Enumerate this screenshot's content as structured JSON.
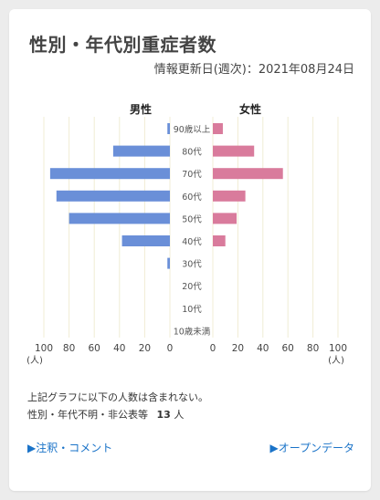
{
  "header": {
    "title": "性別・年代別重症者数",
    "updated": "情報更新日(週次)：2021年08月24日"
  },
  "chart_data": {
    "type": "bar",
    "orientation": "horizontal",
    "categories": [
      "90歳以上",
      "80代",
      "70代",
      "60代",
      "50代",
      "40代",
      "30代",
      "20代",
      "10代",
      "10歳未満"
    ],
    "series": [
      {
        "name": "男性",
        "values": [
          2,
          45,
          95,
          90,
          80,
          38,
          2,
          0,
          0,
          0
        ]
      },
      {
        "name": "女性",
        "values": [
          8,
          33,
          56,
          26,
          19,
          10,
          0,
          0,
          0,
          0
        ]
      }
    ],
    "xlim": [
      0,
      100
    ],
    "ticks": [
      100,
      80,
      60,
      40,
      20,
      0
    ],
    "unit": "(人)",
    "colors": {
      "male": "#6a8fd8",
      "female": "#d97b9c"
    },
    "grid": "vertical"
  },
  "notes": {
    "line1": "上記グラフに以下の人数は含まれない。",
    "line2_label": "性別・年代不明・非公表等",
    "line2_count": "13",
    "line2_unit": "人"
  },
  "links": {
    "left": "▶注釈・コメント",
    "right": "▶オープンデータ"
  }
}
